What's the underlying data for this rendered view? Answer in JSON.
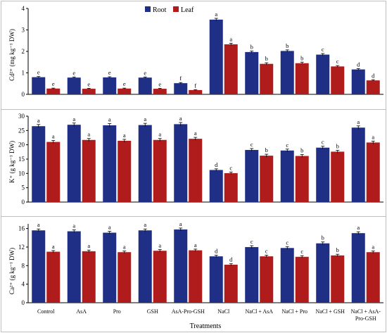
{
  "figure": {
    "xlabel": "Treatments",
    "legend": [
      {
        "name": "Root",
        "color": "#1f2f86"
      },
      {
        "name": "Leaf",
        "color": "#b01c1c"
      }
    ]
  },
  "chart_data": [
    {
      "type": "bar",
      "panel": "Cd",
      "ylabel": "Cd²⁺ (mg kg⁻¹ DW)",
      "ylim": [
        0,
        4
      ],
      "yticks": [
        0,
        1,
        2,
        3,
        4
      ],
      "legend_position": "top-center",
      "categories": [
        "Control",
        "AsA",
        "Pro",
        "GSH",
        "AsA-Pro-GSH",
        "NaCl",
        "NaCl + AsA",
        "NaCl + Pro",
        "NaCl + GSH",
        "NaCl + AsA-Pro-GSH"
      ],
      "series": [
        {
          "name": "Root",
          "color": "#1f2f86",
          "values": [
            0.8,
            0.78,
            0.79,
            0.78,
            0.52,
            3.48,
            1.97,
            2.02,
            1.85,
            1.16
          ],
          "errors": [
            0.03,
            0.03,
            0.03,
            0.03,
            0.03,
            0.06,
            0.05,
            0.05,
            0.05,
            0.04
          ],
          "letters": [
            "e",
            "e",
            "e",
            "e",
            "f",
            "a",
            "b",
            "b",
            "c",
            "d"
          ]
        },
        {
          "name": "Leaf",
          "color": "#b01c1c",
          "values": [
            0.27,
            0.26,
            0.27,
            0.26,
            0.2,
            2.33,
            1.42,
            1.45,
            1.3,
            0.65
          ],
          "errors": [
            0.02,
            0.02,
            0.02,
            0.02,
            0.02,
            0.05,
            0.05,
            0.05,
            0.04,
            0.03
          ],
          "letters": [
            "e",
            "e",
            "e",
            "e",
            "f",
            "a",
            "b",
            "b",
            "c",
            "d"
          ]
        }
      ]
    },
    {
      "type": "bar",
      "panel": "K",
      "ylabel": "K⁺ (g kg⁻¹ DW)",
      "ylim": [
        0,
        30
      ],
      "yticks": [
        0,
        5,
        10,
        15,
        20,
        25,
        30
      ],
      "categories": [
        "Control",
        "AsA",
        "Pro",
        "GSH",
        "AsA-Pro-GSH",
        "NaCl",
        "NaCl + AsA",
        "NaCl + Pro",
        "NaCl + GSH",
        "NaCl + AsA-Pro-GSH"
      ],
      "series": [
        {
          "name": "Root",
          "color": "#1f2f86",
          "values": [
            26.5,
            27.0,
            26.8,
            26.9,
            27.2,
            11.2,
            18.2,
            18.0,
            19.0,
            26.0
          ],
          "errors": [
            0.6,
            0.6,
            0.6,
            0.6,
            0.6,
            0.4,
            0.5,
            0.5,
            0.5,
            0.6
          ],
          "letters": [
            "a",
            "a",
            "a",
            "a",
            "a",
            "d",
            "c",
            "c",
            "c",
            "a"
          ]
        },
        {
          "name": "Leaf",
          "color": "#b01c1c",
          "values": [
            21.0,
            21.7,
            21.4,
            21.7,
            22.1,
            10.1,
            16.2,
            16.1,
            17.6,
            20.8
          ],
          "errors": [
            0.5,
            0.5,
            0.5,
            0.5,
            0.5,
            0.4,
            0.5,
            0.5,
            0.5,
            0.5
          ],
          "letters": [
            "a",
            "a",
            "a",
            "a",
            "a",
            "c",
            "b",
            "b",
            "b",
            "a"
          ]
        }
      ]
    },
    {
      "type": "bar",
      "panel": "Ca",
      "ylabel": "Ca²⁺ (g kg⁻¹ DW)",
      "ylim": [
        0,
        17
      ],
      "yticks": [
        0,
        4,
        8,
        12,
        16
      ],
      "categories": [
        "Control",
        "AsA",
        "Pro",
        "GSH",
        "AsA-Pro-GSH",
        "NaCl",
        "NaCl + AsA",
        "NaCl + Pro",
        "NaCl + GSH",
        "NaCl + AsA-Pro-GSH"
      ],
      "series": [
        {
          "name": "Root",
          "color": "#1f2f86",
          "values": [
            15.6,
            15.4,
            15.1,
            15.6,
            15.8,
            10.0,
            12.0,
            11.8,
            12.8,
            15.0
          ],
          "errors": [
            0.3,
            0.3,
            0.3,
            0.3,
            0.3,
            0.25,
            0.3,
            0.3,
            0.3,
            0.3
          ],
          "letters": [
            "a",
            "a",
            "a",
            "a",
            "a",
            "d",
            "c",
            "c",
            "b",
            "a"
          ]
        },
        {
          "name": "Leaf",
          "color": "#b01c1c",
          "values": [
            11.0,
            11.1,
            10.9,
            11.2,
            11.3,
            8.2,
            10.0,
            9.9,
            10.2,
            10.9
          ],
          "errors": [
            0.25,
            0.25,
            0.25,
            0.25,
            0.25,
            0.2,
            0.25,
            0.25,
            0.25,
            0.25
          ],
          "letters": [
            "a",
            "a",
            "a",
            "a",
            "a",
            "d",
            "c",
            "c",
            "b",
            "a"
          ]
        }
      ]
    }
  ]
}
